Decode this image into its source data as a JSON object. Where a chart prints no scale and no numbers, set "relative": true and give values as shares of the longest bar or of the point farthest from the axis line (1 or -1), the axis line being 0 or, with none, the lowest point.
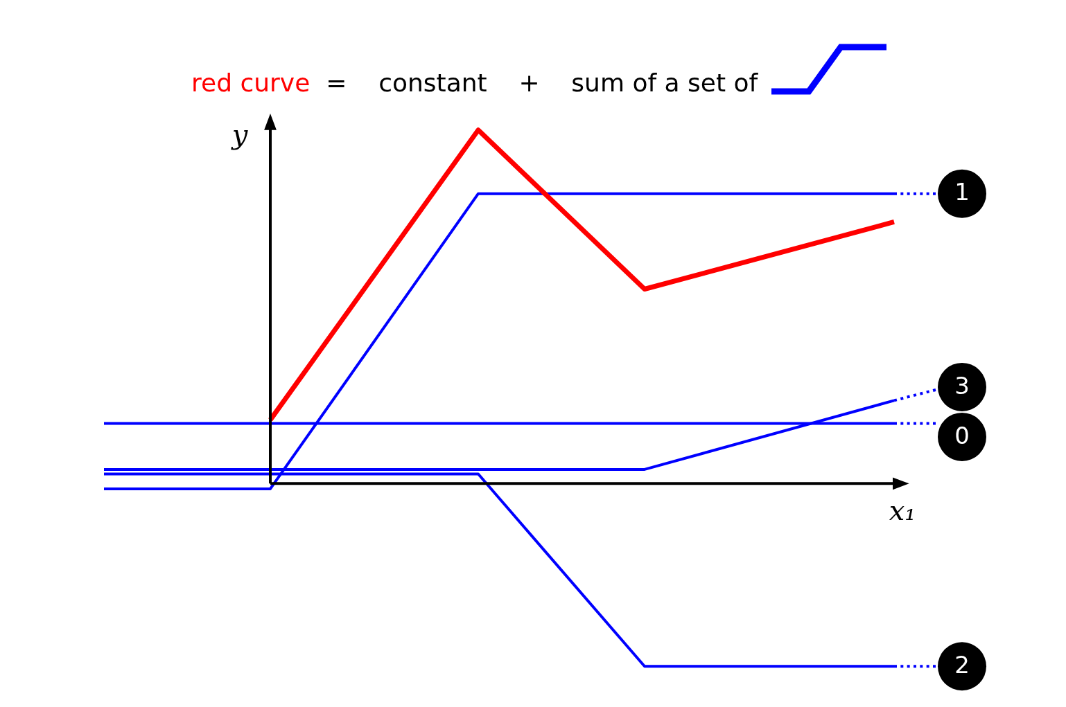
{
  "chart_data": {
    "type": "line",
    "relative": true,
    "title": "=    constant    +    sum of a set of",
    "xlabel": "x₁",
    "ylabel": "y",
    "categories": [
      null,
      null,
      null,
      null,
      null,
      null,
      null,
      null,
      null,
      null,
      null,
      null,
      null,
      null,
      null,
      null,
      null,
      null,
      null,
      null,
      null,
      null
    ],
    "series": [
      {
        "name": "red curve",
        "color": "#ff0000",
        "values": [
          null,
          null,
          null,
          null,
          0.18,
          null,
          null,
          null,
          null,
          1,
          null,
          null,
          null,
          0.55,
          null,
          null,
          null,
          null,
          null,
          0.74,
          null,
          null
        ]
      },
      {
        "name": "1",
        "color": "#0000ff",
        "values": [
          -0.015,
          null,
          null,
          null,
          -0.015,
          null,
          null,
          null,
          null,
          0.82,
          null,
          null,
          null,
          null,
          null,
          null,
          null,
          null,
          null,
          0.82,
          null,
          null
        ]
      },
      {
        "color": "#0000ff",
        "values": [
          null,
          null,
          null,
          null,
          null,
          null,
          null,
          null,
          null,
          null,
          null,
          null,
          null,
          null,
          null,
          null,
          null,
          null,
          null,
          0.82,
          0.82,
          null
        ],
        "line_style": "dotted"
      },
      {
        "name": "3",
        "color": "#0000ff",
        "values": [
          0.04,
          null,
          null,
          null,
          null,
          null,
          null,
          null,
          null,
          null,
          null,
          null,
          null,
          0.04,
          null,
          null,
          null,
          null,
          null,
          0.235,
          null,
          null
        ]
      },
      {
        "color": "#0000ff",
        "values": [
          null,
          null,
          null,
          null,
          null,
          null,
          null,
          null,
          null,
          null,
          null,
          null,
          null,
          null,
          null,
          null,
          null,
          null,
          null,
          0.235,
          0.265,
          null
        ],
        "line_style": "dotted"
      },
      {
        "name": "0",
        "color": "#0000ff",
        "values": [
          0.17,
          null,
          null,
          null,
          null,
          null,
          null,
          null,
          null,
          null,
          null,
          null,
          null,
          null,
          null,
          null,
          null,
          null,
          null,
          0.17,
          null,
          null
        ]
      },
      {
        "color": "#0000ff",
        "values": [
          null,
          null,
          null,
          null,
          null,
          null,
          null,
          null,
          null,
          null,
          null,
          null,
          null,
          null,
          null,
          null,
          null,
          null,
          null,
          0.17,
          0.17,
          null
        ],
        "line_style": "dotted"
      },
      {
        "name": "2",
        "color": "#0000ff",
        "values": [
          0.027,
          null,
          null,
          null,
          null,
          null,
          null,
          null,
          null,
          0.027,
          null,
          null,
          null,
          -0.517,
          null,
          null,
          null,
          null,
          null,
          -0.517,
          null,
          null
        ]
      },
      {
        "color": "#0000ff",
        "values": [
          null,
          null,
          null,
          null,
          null,
          null,
          null,
          null,
          null,
          null,
          null,
          null,
          null,
          null,
          null,
          null,
          null,
          null,
          null,
          -0.517,
          -0.517,
          null
        ],
        "line_style": "dotted"
      }
    ]
  }
}
